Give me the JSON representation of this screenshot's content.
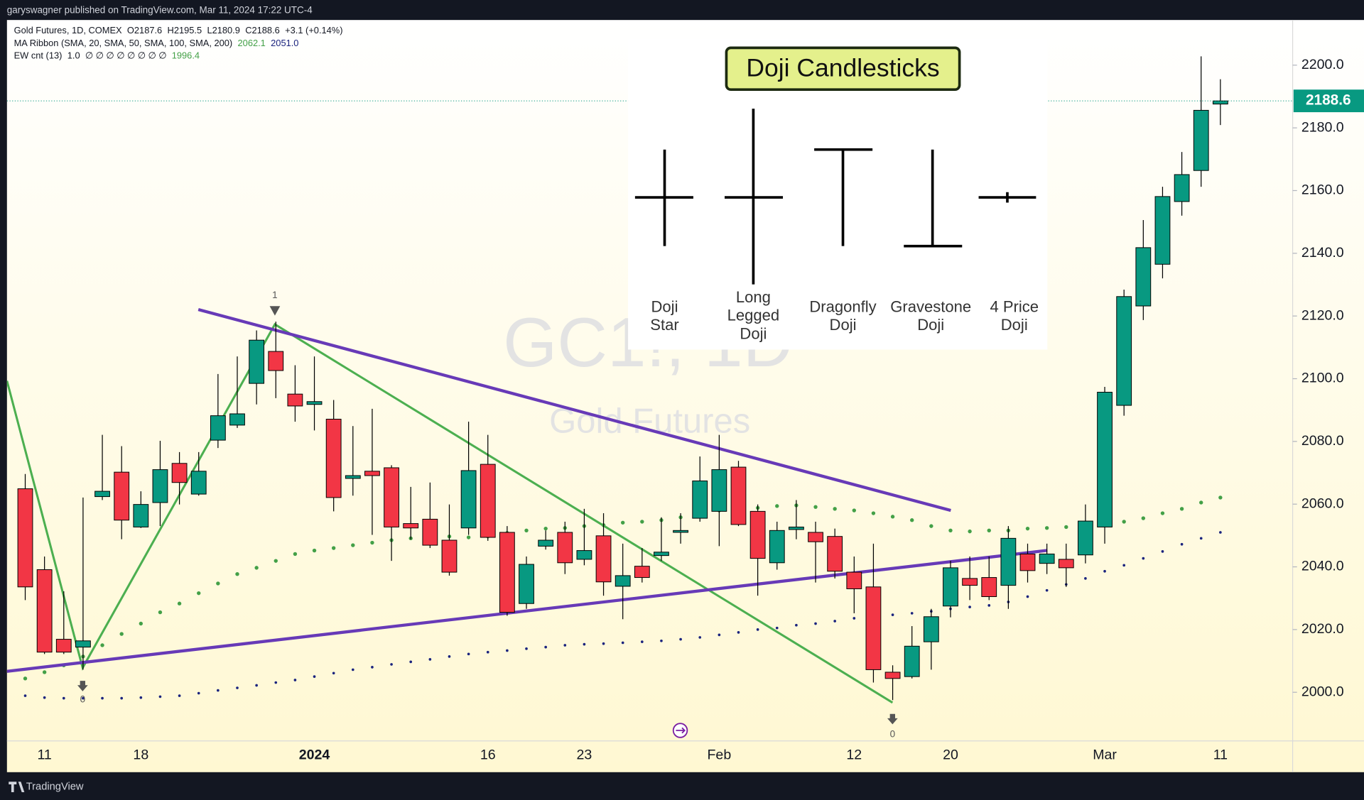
{
  "top_bar": "garyswagner published on TradingView.com, Mar 11, 2024 17:22 UTC-4",
  "footer": "TradingView",
  "doji_panel": {
    "title": "Doji Candlesticks",
    "labels": [
      [
        "Doji",
        "Star"
      ],
      [
        "Long",
        "Legged",
        "Doji"
      ],
      [
        "Dragonfly",
        "Doji"
      ],
      [
        "Gravestone",
        "Doji"
      ],
      [
        "4 Price",
        "Doji"
      ]
    ]
  },
  "wave_labels": [
    "1",
    "0",
    "0"
  ],
  "chart_data": {
    "type": "candlestick",
    "header": [
      {
        "name": "Gold Futures, 1D, COMEX",
        "values": [
          "O2187.6",
          "H2195.5",
          "L2180.9",
          "C2188.6",
          "+3.1 (+0.14%)"
        ],
        "value_colors": [
          "#131722",
          "#131722",
          "#131722",
          "#131722",
          "#131722"
        ]
      },
      {
        "name": "MA Ribbon (SMA, 20, SMA, 50, SMA, 100, SMA, 200)",
        "values": [
          "2062.1",
          "2051.0"
        ],
        "value_colors": [
          "#43a047",
          "#1a237e"
        ]
      },
      {
        "name": "EW cnt (13)",
        "values": [
          "1.0",
          "∅ ∅ ∅ ∅ ∅ ∅ ∅ ∅",
          "1996.4"
        ],
        "value_colors": [
          "#131722",
          "#131722",
          "#43a047"
        ]
      }
    ],
    "watermark": [
      "GC1!, 1D",
      "Gold Futures"
    ],
    "categories": [
      null,
      "11",
      null,
      null,
      null,
      null,
      "18",
      null,
      null,
      null,
      null,
      null,
      null,
      null,
      null,
      "2024",
      null,
      null,
      null,
      null,
      null,
      null,
      null,
      null,
      "16",
      null,
      null,
      null,
      null,
      "23",
      null,
      null,
      null,
      null,
      null,
      null,
      "Feb",
      null,
      null,
      null,
      null,
      null,
      null,
      "12",
      null,
      null,
      null,
      null,
      "20",
      null,
      null,
      null,
      null,
      null,
      null,
      null,
      "Mar",
      null,
      null,
      null,
      null,
      null,
      "11"
    ],
    "open": [
      2064.9,
      2039.1,
      2016.9,
      2014.4,
      2062.4,
      2070.2,
      2052.7,
      2060.5,
      2073.0,
      2063.2,
      2080.4,
      2085.2,
      2098.5,
      2108.7,
      2095.1,
      2091.8,
      2087.1,
      2068.2,
      2070.5,
      2071.6,
      2053.8,
      2055.2,
      2048.5,
      2052.4,
      2072.7,
      2051.0,
      2028.3,
      2046.6,
      2051.0,
      2042.4,
      2049.9,
      2033.8,
      2040.2,
      2043.6,
      2051.0,
      2055.5,
      2057.7,
      2071.8,
      2057.7,
      2041.3,
      2051.9,
      2051.0,
      2049.7,
      2038.3,
      2033.6,
      2006.4,
      2005.0,
      2016.1,
      2027.5,
      2036.3,
      2036.6,
      2034.1,
      2044.1,
      2041.1,
      2042.4,
      2043.8,
      2052.7,
      2091.5,
      2123.2,
      2136.5,
      2156.5,
      2166.4,
      2187.6
    ],
    "high": [
      2069.6,
      2043.3,
      2032.2,
      2062.1,
      2082.1,
      2078.5,
      2064.1,
      2080.2,
      2076.6,
      2076.6,
      2101.5,
      2107.1,
      2115.4,
      2118.2,
      2104.3,
      2107.1,
      2093.2,
      2084.9,
      2090.4,
      2072.4,
      2065.5,
      2066.9,
      2059.9,
      2086.3,
      2082.1,
      2053.0,
      2043.3,
      2051.6,
      2054.4,
      2058.5,
      2057.1,
      2047.4,
      2046.0,
      2055.8,
      2057.1,
      2075.2,
      2082.1,
      2073.8,
      2059.9,
      2054.4,
      2061.3,
      2054.4,
      2052.2,
      2043.3,
      2047.4,
      2008.6,
      2021.1,
      2026.6,
      2041.9,
      2043.3,
      2043.3,
      2053.0,
      2047.4,
      2047.4,
      2047.4,
      2059.9,
      2097.4,
      2128.4,
      2150.6,
      2161.2,
      2172.3,
      2202.8,
      2195.5
    ],
    "low": [
      2029.4,
      2012.2,
      2012.2,
      2007.2,
      2061.3,
      2048.8,
      2052.4,
      2053.0,
      2059.9,
      2062.7,
      2077.9,
      2084.3,
      2091.8,
      2093.8,
      2086.3,
      2083.5,
      2057.7,
      2062.7,
      2050.2,
      2041.9,
      2048.8,
      2046.0,
      2037.2,
      2050.2,
      2048.3,
      2024.4,
      2026.6,
      2045.5,
      2037.7,
      2040.5,
      2030.8,
      2023.3,
      2035.0,
      2041.9,
      2047.4,
      2054.4,
      2046.6,
      2053.0,
      2030.8,
      2039.1,
      2048.8,
      2035.0,
      2036.3,
      2025.2,
      2003.1,
      1997.5,
      2004.4,
      2007.2,
      2023.9,
      2029.4,
      2029.4,
      2026.6,
      2035.0,
      2037.7,
      2033.6,
      2041.1,
      2047.4,
      2088.2,
      2118.7,
      2132.0,
      2152.0,
      2161.2,
      2180.9
    ],
    "close": [
      2033.6,
      2012.8,
      2012.8,
      2016.4,
      2064.1,
      2054.9,
      2059.9,
      2071.0,
      2066.9,
      2070.5,
      2088.2,
      2088.8,
      2112.3,
      2102.6,
      2091.3,
      2092.7,
      2062.1,
      2069.1,
      2069.1,
      2052.7,
      2052.4,
      2046.9,
      2038.3,
      2070.7,
      2049.4,
      2025.5,
      2040.8,
      2048.5,
      2041.3,
      2045.2,
      2035.2,
      2037.2,
      2036.6,
      2044.7,
      2051.6,
      2067.4,
      2071.0,
      2053.5,
      2042.7,
      2051.6,
      2052.7,
      2048.0,
      2038.6,
      2033.0,
      2007.2,
      2004.4,
      2014.7,
      2024.1,
      2039.7,
      2034.1,
      2030.5,
      2049.1,
      2038.8,
      2044.1,
      2039.7,
      2054.6,
      2095.7,
      2126.2,
      2141.8,
      2158.1,
      2165.1,
      2185.6,
      2188.6
    ],
    "up_color": "#089981",
    "down_color": "#f23645",
    "lines": [
      {
        "color": "#43a047",
        "values": [
          2004.4,
          2006.4,
          2008.6,
          2011.4,
          2015.0,
          2018.6,
          2021.9,
          2025.5,
          2028.3,
          2031.6,
          2034.7,
          2037.7,
          2039.7,
          2041.9,
          2044.1,
          2045.2,
          2046.0,
          2046.9,
          2047.7,
          2048.5,
          2049.1,
          2049.4,
          2049.7,
          2049.4,
          2049.7,
          2050.8,
          2051.6,
          2052.2,
          2052.4,
          2053.0,
          2053.3,
          2054.1,
          2054.4,
          2054.9,
          2055.8,
          2056.9,
          2058.0,
          2058.5,
          2058.8,
          2059.4,
          2059.6,
          2059.1,
          2058.5,
          2058.0,
          2057.1,
          2056.0,
          2054.9,
          2053.0,
          2051.6,
          2051.3,
          2051.6,
          2051.6,
          2052.2,
          2052.4,
          2052.7,
          2053.3,
          2053.5,
          2054.4,
          2055.5,
          2057.1,
          2058.5,
          2060.5,
          2062.1
        ]
      },
      {
        "color": "#1a237e",
        "values": [
          1998.9,
          1998.3,
          1998.1,
          1998.1,
          1998.1,
          1998.1,
          1998.3,
          1998.6,
          1998.9,
          1999.7,
          2000.6,
          2001.4,
          2002.2,
          2003.1,
          2003.9,
          2005.0,
          2006.1,
          2007.2,
          2008.0,
          2008.9,
          2009.7,
          2010.5,
          2011.4,
          2012.2,
          2012.8,
          2013.3,
          2013.9,
          2014.4,
          2015.0,
          2015.3,
          2015.5,
          2015.8,
          2016.1,
          2016.4,
          2016.9,
          2017.5,
          2018.3,
          2019.1,
          2020.0,
          2020.5,
          2021.4,
          2021.9,
          2022.7,
          2023.6,
          2024.1,
          2024.7,
          2025.2,
          2025.8,
          2026.6,
          2027.2,
          2027.7,
          2028.8,
          2030.5,
          2032.5,
          2034.4,
          2036.3,
          2038.6,
          2040.5,
          2042.7,
          2044.9,
          2047.2,
          2049.1,
          2051.0
        ]
      }
    ],
    "ylim": [
      1984.5,
      2214.4
    ],
    "yticks": [
      {
        "value": 2000,
        "label": "2000.0"
      },
      {
        "value": 2020,
        "label": "2020.0"
      },
      {
        "value": 2040,
        "label": "2040.0"
      },
      {
        "value": 2060,
        "label": "2060.0"
      },
      {
        "value": 2080,
        "label": "2080.0"
      },
      {
        "value": 2100,
        "label": "2100.0"
      },
      {
        "value": 2120,
        "label": "2120.0"
      },
      {
        "value": 2140,
        "label": "2140.0"
      },
      {
        "value": 2160,
        "label": "2160.0"
      },
      {
        "value": 2180,
        "label": "2180.0"
      },
      {
        "value": 2200,
        "label": "2200.0"
      }
    ],
    "grid": false
  }
}
